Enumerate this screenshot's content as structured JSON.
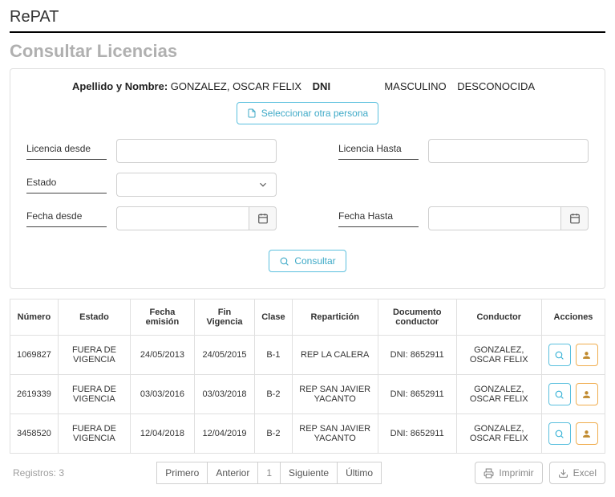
{
  "app": {
    "title": "RePAT"
  },
  "page": {
    "title": "Consultar Licencias"
  },
  "person": {
    "label_name": "Apellido y Nombre:",
    "name": "GONZALEZ, OSCAR FELIX",
    "label_dni": "DNI",
    "dni": "",
    "gender": "MASCULINO",
    "other": "DESCONOCIDA",
    "select_other_btn": "Seleccionar otra persona"
  },
  "filters": {
    "licencia_desde_label": "Licencia desde",
    "licencia_hasta_label": "Licencia Hasta",
    "estado_label": "Estado",
    "fecha_desde_label": "Fecha desde",
    "fecha_hasta_label": "Fecha Hasta",
    "consultar_btn": "Consultar"
  },
  "table": {
    "columns": [
      "Número",
      "Estado",
      "Fecha emisión",
      "Fin Vigencia",
      "Clase",
      "Repartición",
      "Documento conductor",
      "Conductor",
      "Acciones"
    ],
    "rows": [
      {
        "numero": "1069827",
        "estado": "FUERA DE VIGENCIA",
        "emision": "24/05/2013",
        "fin": "24/05/2015",
        "clase": "B-1",
        "reparticion": "REP LA CALERA",
        "documento": "DNI: 8652911",
        "conductor": "GONZALEZ, OSCAR FELIX"
      },
      {
        "numero": "2619339",
        "estado": "FUERA DE VIGENCIA",
        "emision": "03/03/2016",
        "fin": "03/03/2018",
        "clase": "B-2",
        "reparticion": "REP SAN JAVIER YACANTO",
        "documento": "DNI: 8652911",
        "conductor": "GONZALEZ, OSCAR FELIX"
      },
      {
        "numero": "3458520",
        "estado": "FUERA DE VIGENCIA",
        "emision": "12/04/2018",
        "fin": "12/04/2019",
        "clase": "B-2",
        "reparticion": "REP SAN JAVIER YACANTO",
        "documento": "DNI: 8652911",
        "conductor": "GONZALEZ, OSCAR FELIX"
      }
    ]
  },
  "footer": {
    "registros_label": "Registros:",
    "registros_count": "3",
    "primero": "Primero",
    "anterior": "Anterior",
    "page": "1",
    "siguiente": "Siguiente",
    "ultimo": "Último",
    "imprimir": "Imprimir",
    "excel": "Excel"
  },
  "colors": {
    "accent": "#5bc0de",
    "amber": "#f0ad4e",
    "muted": "#9e9e9e",
    "border": "#e0e0e0"
  }
}
